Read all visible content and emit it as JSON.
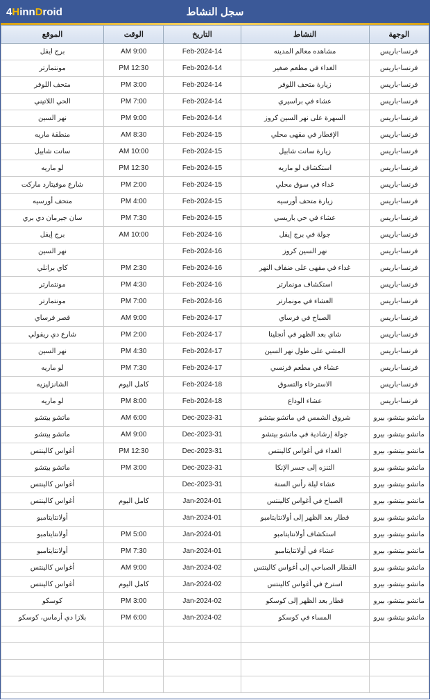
{
  "header": {
    "logo_html": "4<span class='accent'>H</span>inn<span class='accent'>D</span>roid",
    "title": "سجل النشاط"
  },
  "columns": {
    "destination": "الوجهة",
    "activity": "النشاط",
    "date": "التاريخ",
    "time": "الوقت",
    "location": "الموقع"
  },
  "rows": [
    {
      "dest": "فرنسا-باريس",
      "act": "مشاهده معالم المدينه",
      "date": "14-Feb-2024",
      "time": "9:00 AM",
      "loc": "برج ايفل"
    },
    {
      "dest": "فرنسا-باريس",
      "act": "الغداء في مطعم صغير",
      "date": "14-Feb-2024",
      "time": "12:30 PM",
      "loc": "مونتمارتر"
    },
    {
      "dest": "فرنسا-باريس",
      "act": "زيارة متحف اللوفر",
      "date": "14-Feb-2024",
      "time": "3:00 PM",
      "loc": "متحف اللوفر"
    },
    {
      "dest": "فرنسا-باريس",
      "act": "عشاء في براسيري",
      "date": "14-Feb-2024",
      "time": "7:00 PM",
      "loc": "الحي اللاتيني"
    },
    {
      "dest": "فرنسا-باريس",
      "act": "السهرة على نهر السين كروز",
      "date": "14-Feb-2024",
      "time": "9:00 PM",
      "loc": "نهر السين"
    },
    {
      "dest": "فرنسا-باريس",
      "act": "الإفطار في مقهى محلي",
      "date": "15-Feb-2024",
      "time": "8:30 AM",
      "loc": "منطقة ماريه"
    },
    {
      "dest": "فرنسا-باريس",
      "act": "زيارة سانت شابيل",
      "date": "15-Feb-2024",
      "time": "10:00 AM",
      "loc": "سانت شابيل"
    },
    {
      "dest": "فرنسا-باريس",
      "act": "استكشاف لو ماريه",
      "date": "15-Feb-2024",
      "time": "12:30 PM",
      "loc": "لو ماريه"
    },
    {
      "dest": "فرنسا-باريس",
      "act": "غداء في سوق محلي",
      "date": "15-Feb-2024",
      "time": "2:00 PM",
      "loc": "شارع موفيتارد ماركت"
    },
    {
      "dest": "فرنسا-باريس",
      "act": "زيارة متحف أورسيه",
      "date": "15-Feb-2024",
      "time": "4:00 PM",
      "loc": "متحف أورسيه"
    },
    {
      "dest": "فرنسا-باريس",
      "act": "عشاء في حي باريسي",
      "date": "15-Feb-2024",
      "time": "7:30 PM",
      "loc": "سان جيرمان دي بري"
    },
    {
      "dest": "فرنسا-باريس",
      "act": "جولة في برج إيفل",
      "date": "16-Feb-2024",
      "time": "10:00 AM",
      "loc": "برج إيفل"
    },
    {
      "dest": "فرنسا-باريس",
      "act": "نهر السين كروز",
      "date": "16-Feb-2024",
      "time": "",
      "loc": "نهر السين"
    },
    {
      "dest": "فرنسا-باريس",
      "act": "غداء في مقهى على ضفاف النهر",
      "date": "16-Feb-2024",
      "time": "2:30 PM",
      "loc": "كاي برانلي"
    },
    {
      "dest": "فرنسا-باريس",
      "act": "استكشاف مونمارتر",
      "date": "16-Feb-2024",
      "time": "4:30 PM",
      "loc": "مونتمارتر"
    },
    {
      "dest": "فرنسا-باريس",
      "act": "العشاء في مونمارتر",
      "date": "16-Feb-2024",
      "time": "7:00 PM",
      "loc": "مونتمارتر"
    },
    {
      "dest": "فرنسا-باريس",
      "act": "الصباح في فرساي",
      "date": "17-Feb-2024",
      "time": "9:00 AM",
      "loc": "قصر فرساي"
    },
    {
      "dest": "فرنسا-باريس",
      "act": "شاي بعد الظهر في أنجلينا",
      "date": "17-Feb-2024",
      "time": "2:00 PM",
      "loc": "شارع دي ريفولي"
    },
    {
      "dest": "فرنسا-باريس",
      "act": "المشي على طول نهر السين",
      "date": "17-Feb-2024",
      "time": "4:30 PM",
      "loc": "نهر السين"
    },
    {
      "dest": "فرنسا-باريس",
      "act": "عشاء في مطعم فرنسي",
      "date": "17-Feb-2024",
      "time": "7:30 PM",
      "loc": "لو ماريه"
    },
    {
      "dest": "فرنسا-باريس",
      "act": "الاسترخاء والتسوق",
      "date": "18-Feb-2024",
      "time": "كامل اليوم",
      "loc": "الشانزليزيه"
    },
    {
      "dest": "فرنسا-باريس",
      "act": "عشاء الوداع",
      "date": "18-Feb-2024",
      "time": "8:00 PM",
      "loc": "لو ماريه"
    },
    {
      "dest": "ماتشو بيتشو، بيرو",
      "act": "شروق الشمس في ماتشو بيتشو",
      "date": "31-Dec-2023",
      "time": "6:00 AM",
      "loc": "ماتشو بيتشو"
    },
    {
      "dest": "ماتشو بيتشو، بيرو",
      "act": "جولة إرشادية في ماتشو بيتشو",
      "date": "31-Dec-2023",
      "time": "9:00 AM",
      "loc": "ماتشو بيتشو"
    },
    {
      "dest": "ماتشو بيتشو، بيرو",
      "act": "الغداء في أغواس كالينتس",
      "date": "31-Dec-2023",
      "time": "12:30 PM",
      "loc": "أغواس كالينتس"
    },
    {
      "dest": "ماتشو بيتشو، بيرو",
      "act": "التنزه إلى جسر الإنكا",
      "date": "31-Dec-2023",
      "time": "3:00 PM",
      "loc": "ماتشو بيتشو"
    },
    {
      "dest": "ماتشو بيتشو، بيرو",
      "act": "عشاء ليلة رأس السنة",
      "date": "31-Dec-2023",
      "time": "",
      "loc": "أغواس كالينتس"
    },
    {
      "dest": "ماتشو بيتشو، بيرو",
      "act": "الصباح في أغواس كالينتس",
      "date": "01-Jan-2024",
      "time": "كامل اليوم",
      "loc": "أغواس كالينتس"
    },
    {
      "dest": "ماتشو بيتشو، بيرو",
      "act": "قطار بعد الظهر إلى أولانتايتامبو",
      "date": "01-Jan-2024",
      "time": "",
      "loc": "أولانتايتامبو"
    },
    {
      "dest": "ماتشو بيتشو، بيرو",
      "act": "استكشاف أولانتايتامبو",
      "date": "01-Jan-2024",
      "time": "5:00 PM",
      "loc": "أولانتايتامبو"
    },
    {
      "dest": "ماتشو بيتشو، بيرو",
      "act": "عشاء في أولانتايتامبو",
      "date": "01-Jan-2024",
      "time": "7:30 PM",
      "loc": "أولانتايتامبو"
    },
    {
      "dest": "ماتشو بيتشو، بيرو",
      "act": "القطار الصباحي إلى أغواس كالينتس",
      "date": "02-Jan-2024",
      "time": "9:00 AM",
      "loc": "أغواس كالينتس"
    },
    {
      "dest": "ماتشو بيتشو، بيرو",
      "act": "استرخ في أغواس كالينتس",
      "date": "02-Jan-2024",
      "time": "كامل اليوم",
      "loc": "أغواس كالينتس"
    },
    {
      "dest": "ماتشو بيتشو، بيرو",
      "act": "قطار بعد الظهر إلى كوسكو",
      "date": "02-Jan-2024",
      "time": "3:00 PM",
      "loc": "كوسكو"
    },
    {
      "dest": "ماتشو بيتشو، بيرو",
      "act": "المساء في كوسكو",
      "date": "02-Jan-2024",
      "time": "6:00 PM",
      "loc": "بلازا دي أرماس، كوسكو"
    }
  ],
  "empty_rows": 4
}
